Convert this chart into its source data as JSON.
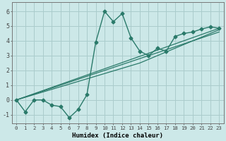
{
  "xlabel": "Humidex (Indice chaleur)",
  "bg_color": "#cce8e8",
  "grid_color": "#aacccc",
  "line_color": "#2a7a6a",
  "xlim": [
    -0.5,
    23.5
  ],
  "ylim": [
    -1.6,
    6.6
  ],
  "xticks": [
    0,
    1,
    2,
    3,
    4,
    5,
    6,
    7,
    8,
    9,
    10,
    11,
    12,
    13,
    14,
    15,
    16,
    17,
    18,
    19,
    20,
    21,
    22,
    23
  ],
  "yticks": [
    -1,
    0,
    1,
    2,
    3,
    4,
    5,
    6
  ],
  "jagged": {
    "x": [
      0,
      1,
      2,
      3,
      4,
      5,
      6,
      7,
      8,
      9,
      10,
      11,
      12,
      13,
      14,
      15,
      16,
      17,
      18,
      19,
      20,
      21,
      22,
      23
    ],
    "y": [
      0.0,
      -0.8,
      0.0,
      0.0,
      -0.35,
      -0.45,
      -1.2,
      -0.65,
      0.35,
      3.9,
      6.0,
      5.3,
      5.85,
      4.2,
      3.3,
      3.0,
      3.5,
      3.3,
      4.3,
      4.5,
      4.6,
      4.8,
      4.95,
      4.85
    ]
  },
  "straight_lines": [
    {
      "x": [
        0,
        23
      ],
      "y": [
        0.0,
        4.85
      ]
    },
    {
      "x": [
        0,
        23
      ],
      "y": [
        0.0,
        4.6
      ]
    },
    {
      "x": [
        0,
        14,
        23
      ],
      "y": [
        0.0,
        2.5,
        4.75
      ]
    }
  ]
}
